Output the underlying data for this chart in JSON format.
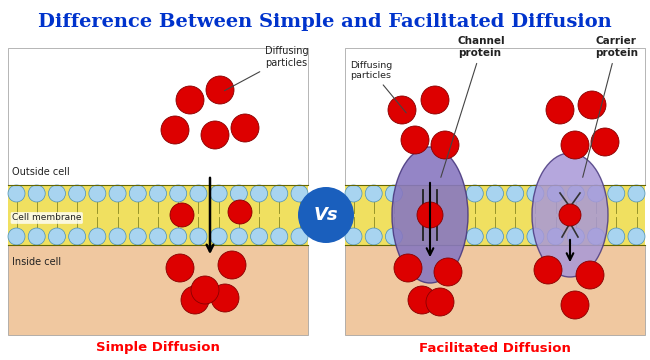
{
  "title": "Difference Between Simple and Facilitated Diffusion",
  "title_color": "#0033cc",
  "title_fontsize": 14,
  "bg_color": "#ffffff",
  "membrane_bg_color": "#f0e060",
  "head_color": "#a8d4f0",
  "head_border": "#4a90b8",
  "inside_cell_color": "#f0c8a0",
  "particle_color": "#dd0000",
  "particle_edge": "#880000",
  "arrow_color": "#000000",
  "label_color": "#222222",
  "simple_label": "Simple Diffusion",
  "facilitated_label": "Facilitated Diffusion",
  "vs_bg": "#1a5fbd",
  "vs_text": "Vs",
  "outside_cell_text": "Outside cell",
  "cell_membrane_text": "Cell membrane",
  "inside_cell_text": "Inside cell",
  "diffusing_particles_text": "Diffusing\nparticles",
  "channel_protein_text": "Channel\nprotein",
  "carrier_protein_text": "Carrier\nprotein",
  "diffusing_particles_text2": "Diffusing\nparticles",
  "channel_color": "#8878c0",
  "channel_edge": "#4a3a80",
  "carrier_color": "#a898d8",
  "carrier_edge": "#4a3a80"
}
